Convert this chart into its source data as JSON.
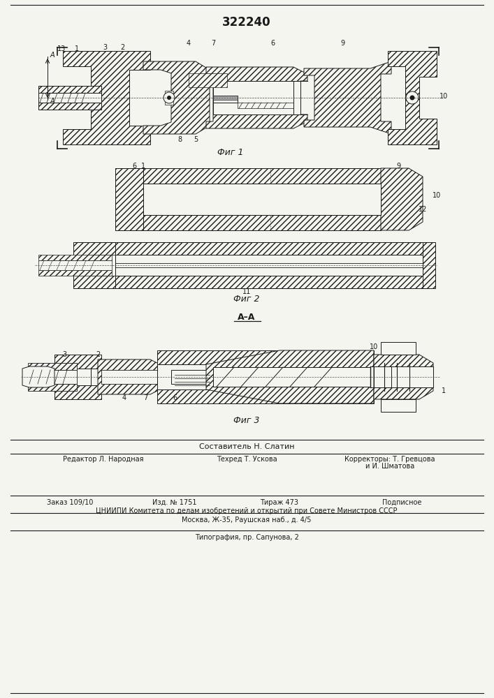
{
  "title": "322240",
  "title_fontsize": 12,
  "fig1_caption": "Фиг 1",
  "fig2_caption": "Фиг 2",
  "fig3_caption": "Фиг 3",
  "background_color": "#f5f5f0",
  "line_color": "#1a1a1a",
  "footer_sestavitel": "Составитель Н. Слатин",
  "footer_editor": "Редактор Л. Народная",
  "footer_tekhred": "Техред Т. Ускова",
  "footer_korr": "Корректоры: Т. Гревцова",
  "footer_korr2": "и И. Шматова",
  "footer_zakaz": "Заказ 109/10",
  "footer_izd": "Изд. № 1751",
  "footer_tirazh": "Тираж 473",
  "footer_podp": "Подписное",
  "footer_cniip": "ЦНИИПИ Комитета по делам изобретений и открытий при Совете Министров СССР",
  "footer_moskva": "Москва, Ж-35, Раушская наб., д. 4/5",
  "footer_tip": "Типография, пр. Сапунова, 2"
}
